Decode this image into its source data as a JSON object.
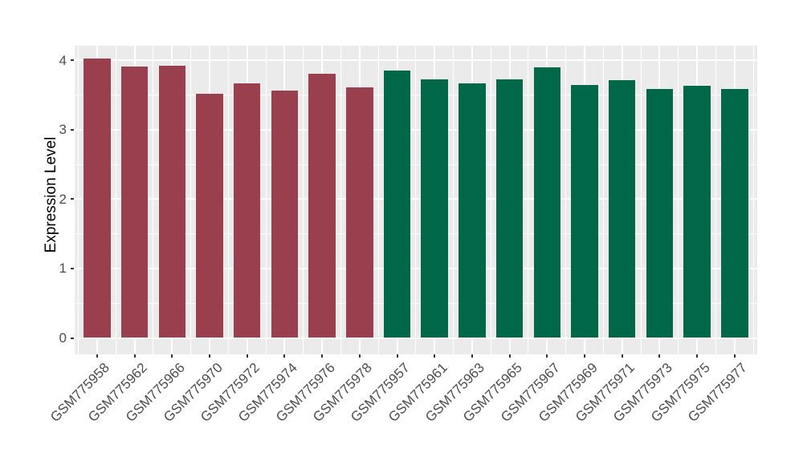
{
  "chart_data": {
    "type": "bar",
    "title": "",
    "xlabel": "",
    "ylabel": "Expression Level",
    "categories": [
      "GSM775958",
      "GSM775962",
      "GSM775966",
      "GSM775970",
      "GSM775972",
      "GSM775974",
      "GSM775976",
      "GSM775978",
      "GSM775957",
      "GSM775961",
      "GSM775963",
      "GSM775965",
      "GSM775967",
      "GSM775969",
      "GSM775971",
      "GSM775973",
      "GSM775975",
      "GSM775977"
    ],
    "values": [
      4.02,
      3.91,
      3.92,
      3.52,
      3.67,
      3.56,
      3.81,
      3.61,
      3.85,
      3.72,
      3.67,
      3.72,
      3.9,
      3.64,
      3.71,
      3.58,
      3.63,
      3.59
    ],
    "groups": [
      "group1",
      "group1",
      "group1",
      "group1",
      "group1",
      "group1",
      "group1",
      "group1",
      "group2",
      "group2",
      "group2",
      "group2",
      "group2",
      "group2",
      "group2",
      "group2",
      "group2",
      "group2"
    ],
    "group_colors": {
      "group1": "#993F4E",
      "group2": "#006848"
    },
    "yticks": [
      0,
      1,
      2,
      3,
      4
    ],
    "ylim": [
      0,
      4.2
    ],
    "grid": "on",
    "legend": "none",
    "panel_background": "#EBEBEB",
    "gridline_color": "#FFFFFF",
    "tick_color": "#333333",
    "axis_text_color": "#4D4D4D",
    "axis_title_color": "#000000"
  }
}
